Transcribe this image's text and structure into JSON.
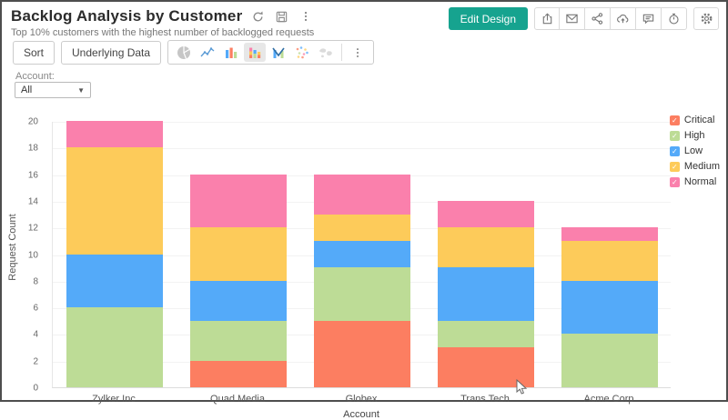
{
  "header": {
    "title": "Backlog Analysis by Customer",
    "subtitle": "Top 10% customers with the highest number of backlogged requests",
    "edit_design_label": "Edit Design",
    "title_icons": [
      "refresh-icon",
      "save-icon",
      "more-options-icon"
    ],
    "action_icons": [
      "export-icon",
      "email-icon",
      "share-icon",
      "cloud-upload-icon",
      "comment-icon",
      "alert-icon",
      "settings-icon"
    ]
  },
  "toolbar": {
    "sort_label": "Sort",
    "underlying_data_label": "Underlying Data",
    "chart_type_icons": [
      "pie-chart-icon",
      "line-chart-icon",
      "bar-chart-icon",
      "stacked-bar-chart-icon",
      "combo-chart-icon",
      "scatter-chart-icon",
      "map-chart-icon",
      "more-chart-types-icon"
    ],
    "selected_chart_type": "stacked-bar-chart-icon"
  },
  "filter": {
    "label": "Account:",
    "value": "All"
  },
  "chart_data": {
    "type": "bar",
    "stacked": true,
    "title": "",
    "xlabel": "Account",
    "ylabel": "Request Count",
    "ylim": [
      0,
      20
    ],
    "ytick_step": 2,
    "grid": true,
    "legend_position": "right",
    "categories": [
      "Zylker Inc",
      "Quad Media",
      "Globex",
      "Trans Tech",
      "Acme Corp"
    ],
    "series": [
      {
        "name": "Critical",
        "color": "#FC7E61",
        "values": [
          0,
          2,
          5,
          3,
          0
        ]
      },
      {
        "name": "High",
        "color": "#BDDC96",
        "values": [
          6,
          3,
          4,
          2,
          4
        ]
      },
      {
        "name": "Low",
        "color": "#54AAF9",
        "values": [
          4,
          3,
          2,
          4,
          4
        ]
      },
      {
        "name": "Medium",
        "color": "#FDCB5A",
        "values": [
          8,
          4,
          2,
          3,
          3
        ]
      },
      {
        "name": "Normal",
        "color": "#FA80AC",
        "values": [
          2,
          4,
          3,
          2,
          1
        ]
      }
    ],
    "totals": {
      "Zylker Inc": 20,
      "Quad Media": 16,
      "Globex": 16,
      "Trans Tech": 14,
      "Acme Corp": 12
    }
  },
  "colors": {
    "accent_teal": "#16a38f",
    "icon_gray": "#777777"
  }
}
